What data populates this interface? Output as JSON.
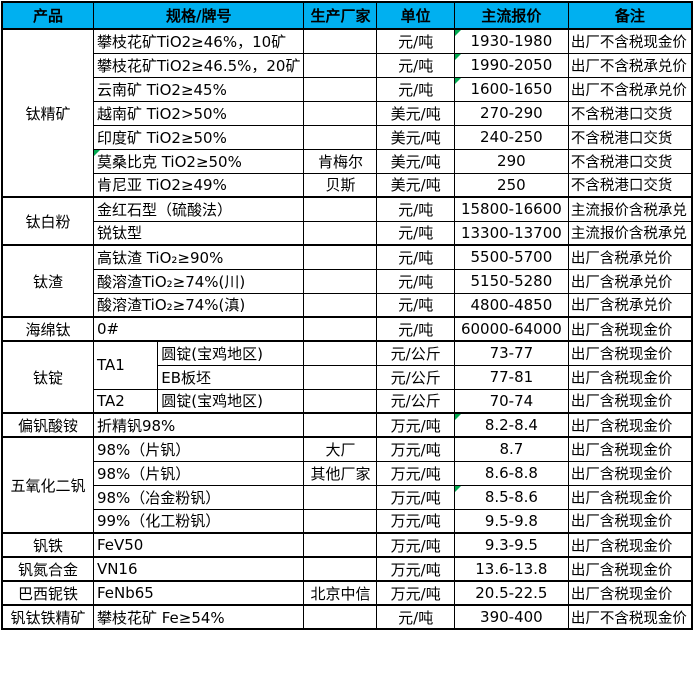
{
  "colors": {
    "header_bg": "#00B0F0",
    "border": "#000000",
    "comment_flag_green": "#00A94F",
    "text": "#000000"
  },
  "header": {
    "product": "产品",
    "spec": "规格/牌号",
    "maker": "生产厂家",
    "unit": "单位",
    "price": "主流报价",
    "note": "备注"
  },
  "rows": [
    {
      "product": "钛精矿",
      "spec": "攀枝花矿TiO2≥46%，10矿",
      "maker": "",
      "unit": "元/吨",
      "price": "1930-1980",
      "note": "出厂不含税现金价"
    },
    {
      "spec": "攀枝花矿TiO2≥46.5%，20矿",
      "maker": "",
      "unit": "元/吨",
      "price": "1990-2050",
      "note": "出厂不含税承兑价"
    },
    {
      "spec": "云南矿 TiO2≥45%",
      "maker": "",
      "unit": "元/吨",
      "price": "1600-1650",
      "note": "出厂不含税承兑价"
    },
    {
      "spec": "越南矿 TiO2>50%",
      "maker": "",
      "unit": "美元/吨",
      "price": "270-290",
      "note": "不含税港口交货"
    },
    {
      "spec": "印度矿 TiO2≥50%",
      "maker": "",
      "unit": "美元/吨",
      "price": "240-250",
      "note": "不含税港口交货"
    },
    {
      "spec": "莫桑比克 TiO2≥50%",
      "maker": "肯梅尔",
      "unit": "美元/吨",
      "price": "290",
      "note": "不含税港口交货"
    },
    {
      "spec": "肯尼亚 TiO2≥49%",
      "maker": "贝斯",
      "unit": "美元/吨",
      "price": "250",
      "note": "不含税港口交货"
    },
    {
      "product": "钛白粉",
      "spec": "金红石型（硫酸法）",
      "maker": "",
      "unit": "元/吨",
      "price": "15800-16600",
      "note": "主流报价含税承兑"
    },
    {
      "spec": "锐钛型",
      "maker": "",
      "unit": "元/吨",
      "price": "13300-13700",
      "note": "主流报价含税承兑"
    },
    {
      "product": "钛渣",
      "spec": "高钛渣 TiO₂≥90%",
      "maker": "",
      "unit": "元/吨",
      "price": "5500-5700",
      "note": "出厂含税承兑价"
    },
    {
      "spec": "酸溶渣TiO₂≥74%(川)",
      "maker": "",
      "unit": "元/吨",
      "price": "5150-5280",
      "note": "出厂含税承兑价"
    },
    {
      "spec": "酸溶渣TiO₂≥74%(滇)",
      "maker": "",
      "unit": "元/吨",
      "price": "4800-4850",
      "note": "出厂含税承兑价"
    },
    {
      "product": "海绵钛",
      "spec": "0#",
      "maker": "",
      "unit": "元/吨",
      "price": "60000-64000",
      "note": "出厂含税现金价"
    },
    {
      "product": "钛锭",
      "grade": "TA1",
      "spec": "圆锭(宝鸡地区)",
      "maker": "",
      "unit": "元/公斤",
      "price": "73-77",
      "note": "出厂含税现金价"
    },
    {
      "spec": "EB板坯",
      "maker": "",
      "unit": "元/公斤",
      "price": "77-81",
      "note": "出厂含税现金价"
    },
    {
      "grade": "TA2",
      "spec": "圆锭(宝鸡地区)",
      "maker": "",
      "unit": "元/公斤",
      "price": "70-74",
      "note": "出厂含税现金价"
    },
    {
      "product": "偏钒酸铵",
      "spec": "折精钒98%",
      "maker": "",
      "unit": "万元/吨",
      "price": "8.2-8.4",
      "note": "出厂含税现金价"
    },
    {
      "product": "五氧化二钒",
      "spec": "98%（片钒）",
      "maker": "大厂",
      "unit": "万元/吨",
      "price": "8.7",
      "note": "出厂含税现金价"
    },
    {
      "spec": "98%（片钒）",
      "maker": "其他厂家",
      "unit": "万元/吨",
      "price": "8.6-8.8",
      "note": "出厂含税现金价"
    },
    {
      "spec": "98%（冶金粉钒）",
      "maker": "",
      "unit": "万元/吨",
      "price": "8.5-8.6",
      "note": "出厂含税现金价"
    },
    {
      "spec": "99%（化工粉钒）",
      "maker": "",
      "unit": "万元/吨",
      "price": "9.5-9.8",
      "note": "出厂含税现金价"
    },
    {
      "product": "钒铁",
      "spec": "FeV50",
      "maker": "",
      "unit": "万元/吨",
      "price": "9.3-9.5",
      "note": "出厂含税现金价"
    },
    {
      "product": "钒氮合金",
      "spec": "VN16",
      "maker": "",
      "unit": "万元/吨",
      "price": "13.6-13.8",
      "note": "出厂含税现金价"
    },
    {
      "product": "巴西铌铁",
      "spec": "FeNb65",
      "maker": "北京中信",
      "unit": "万元/吨",
      "price": "20.5-22.5",
      "note": "出厂含税现金价"
    },
    {
      "product": "钒钛铁精矿",
      "spec": "攀枝花矿 Fe≥54%",
      "maker": "",
      "unit": "元/吨",
      "price": "390-400",
      "note": "出厂不含税现金价"
    }
  ],
  "comment_flags": [
    {
      "row": 0,
      "cell": "price"
    },
    {
      "row": 1,
      "cell": "price"
    },
    {
      "row": 2,
      "cell": "price"
    },
    {
      "row": 5,
      "cell": "spec"
    },
    {
      "row": 16,
      "cell": "price"
    },
    {
      "row": 19,
      "cell": "price"
    }
  ]
}
